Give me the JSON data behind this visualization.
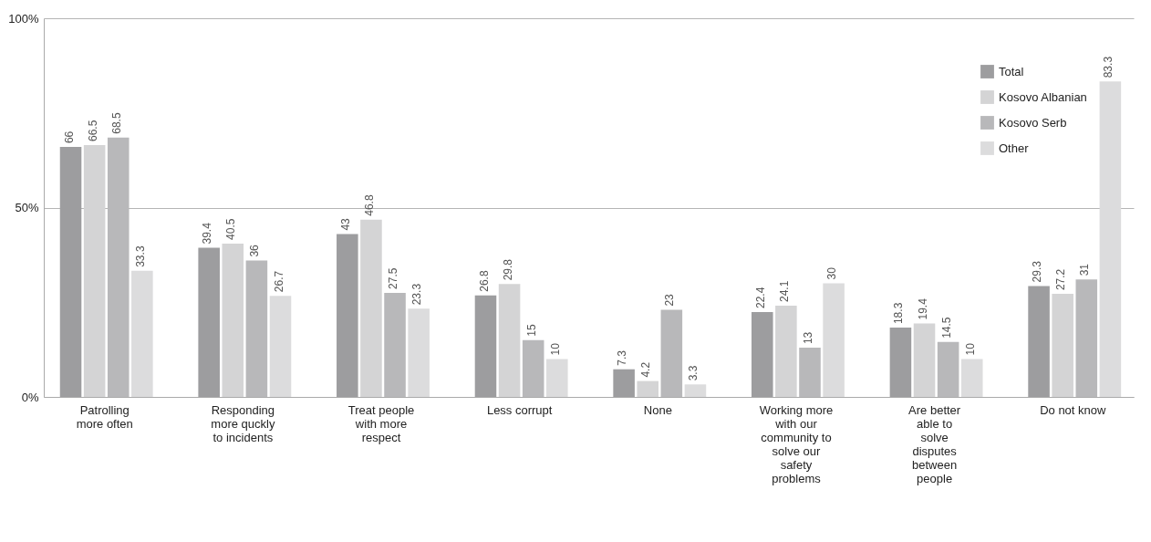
{
  "chart_data": {
    "type": "bar",
    "categories": [
      "Patrolling more often",
      "Responding more quckly to incidents",
      "Treat people with more respect",
      "Less corrupt",
      "None",
      "Working more with our community to solve our safety problems",
      "Are better able to solve disputes between people",
      "Do not know"
    ],
    "series": [
      {
        "name": "Total",
        "color": "#9d9d9f",
        "values": [
          66,
          39.4,
          43,
          26.8,
          7.3,
          22.4,
          18.3,
          29.3
        ]
      },
      {
        "name": "Kosovo Albanian",
        "color": "#d4d4d5",
        "values": [
          66.5,
          40.5,
          46.8,
          29.8,
          4.2,
          24.1,
          19.4,
          27.2
        ]
      },
      {
        "name": "Kosovo Serb",
        "color": "#b8b8ba",
        "values": [
          68.5,
          36,
          27.5,
          15,
          23,
          13,
          14.5,
          31
        ]
      },
      {
        "name": "Other",
        "color": "#dcdcdd",
        "values": [
          33.3,
          26.7,
          23.3,
          10,
          3.3,
          30,
          10,
          83.3
        ]
      }
    ],
    "ylim": [
      0,
      100
    ],
    "yticks": [
      {
        "value": 0,
        "label": "0%"
      },
      {
        "value": 50,
        "label": "50%"
      },
      {
        "value": 100,
        "label": "100%"
      }
    ],
    "grid": "y",
    "legend": "top right",
    "data_labels": true
  }
}
